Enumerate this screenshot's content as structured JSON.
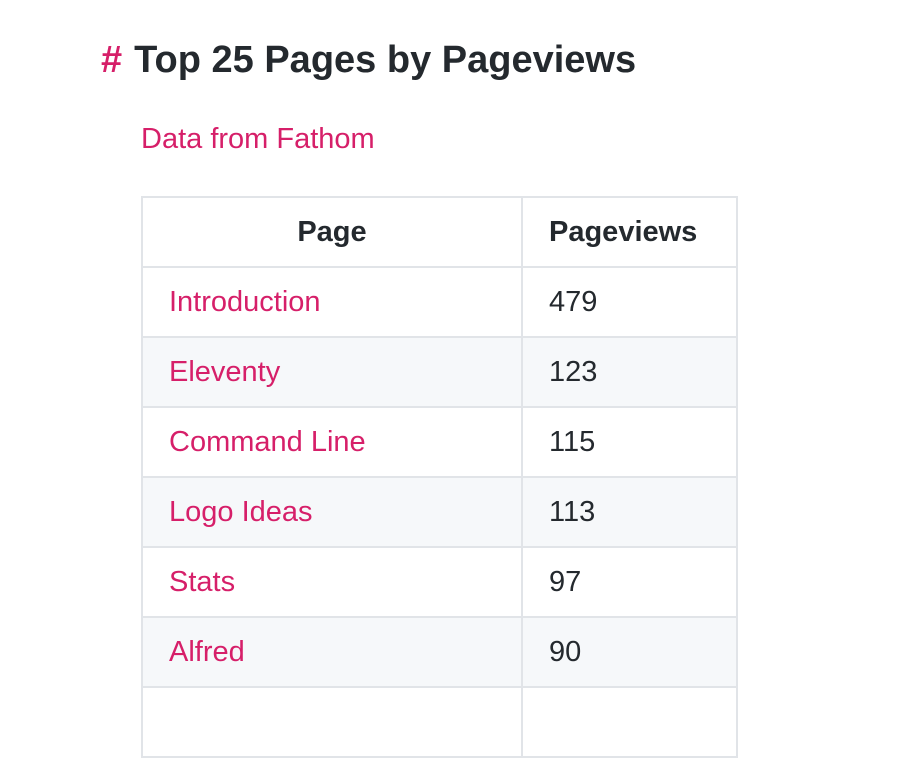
{
  "heading": {
    "anchor": "#",
    "title": "Top 25 Pages by Pageviews"
  },
  "source_link": "Data from Fathom",
  "table": {
    "columns": [
      "Page",
      "Pageviews"
    ],
    "rows": [
      {
        "page": "Introduction",
        "views": "479"
      },
      {
        "page": "Eleventy",
        "views": "123"
      },
      {
        "page": "Command Line",
        "views": "115"
      },
      {
        "page": "Logo Ideas",
        "views": "113"
      },
      {
        "page": "Stats",
        "views": "97"
      },
      {
        "page": "Alfred",
        "views": "90"
      },
      {
        "page": "",
        "views": ""
      }
    ]
  },
  "colors": {
    "accent": "#d61f69",
    "text": "#24292e",
    "border": "#e1e4e8",
    "stripe": "#f6f8fa"
  }
}
